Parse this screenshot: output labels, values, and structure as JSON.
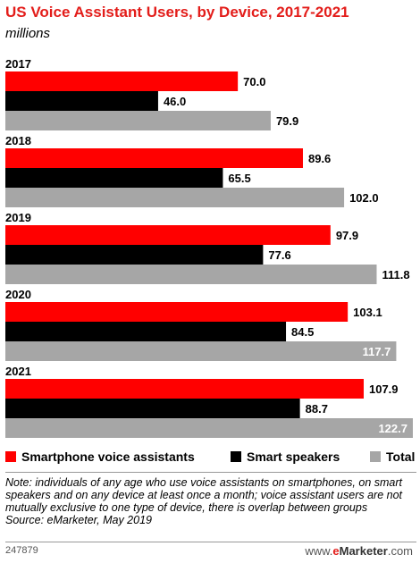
{
  "title": "US Voice Assistant Users, by Device, 2017-2021",
  "subtitle": "millions",
  "colors": {
    "accent": "#e31d1a",
    "smartphone": "#ff0000",
    "speakers": "#000000",
    "total": "#a6a6a6"
  },
  "chart_data": {
    "type": "bar",
    "orientation": "horizontal",
    "title": "US Voice Assistant Users, by Device, 2017-2021",
    "subtitle": "millions",
    "categories": [
      "2017",
      "2018",
      "2019",
      "2020",
      "2021"
    ],
    "series": [
      {
        "name": "Smartphone voice assistants",
        "color": "#ff0000",
        "values": [
          70.0,
          89.6,
          97.9,
          103.1,
          107.9
        ]
      },
      {
        "name": "Smart speakers",
        "color": "#000000",
        "values": [
          46.0,
          65.5,
          77.6,
          84.5,
          88.7
        ]
      },
      {
        "name": "Total",
        "color": "#a6a6a6",
        "values": [
          79.9,
          102.0,
          111.8,
          117.7,
          122.7
        ]
      }
    ],
    "value_labels": [
      [
        "70.0",
        "89.6",
        "97.9",
        "103.1",
        "107.9"
      ],
      [
        "46.0",
        "65.5",
        "77.6",
        "84.5",
        "88.7"
      ],
      [
        "79.9",
        "102.0",
        "111.8",
        "117.7",
        "122.7"
      ]
    ],
    "xlim": [
      0,
      122.7
    ],
    "grid": false,
    "legend_position": "bottom"
  },
  "legend": [
    {
      "label": "Smartphone voice assistants",
      "color": "#ff0000"
    },
    {
      "label": "Smart speakers",
      "color": "#000000"
    },
    {
      "label": "Total",
      "color": "#a6a6a6"
    }
  ],
  "note": "Note: individuals of any age who use voice assistants on smartphones, on smart speakers and on any device at least once a month; voice assistant users are not mutually exclusive to one type of device, there is overlap between groups",
  "source": "Source: eMarketer, May 2019",
  "chart_id": "247879",
  "logo": {
    "prefix": "www.",
    "brand_e": "e",
    "brand_rest": "Marketer",
    "suffix": ".com"
  }
}
